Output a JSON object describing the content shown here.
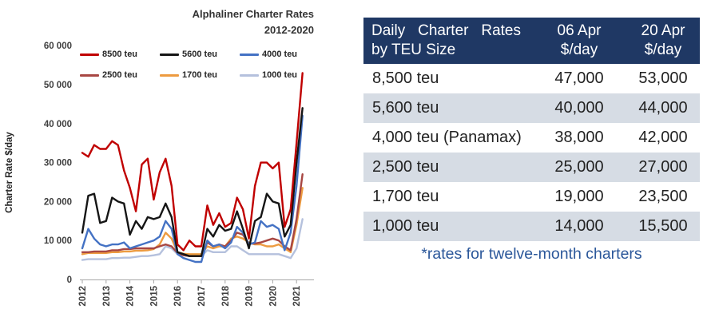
{
  "chart": {
    "title_line1": "Alphaliner Charter Rates",
    "title_line2": "2012-2020",
    "y_axis_title": "Charter Rate $/day",
    "y_ticks": [
      "60 000",
      "50 000",
      "40 000",
      "30 000",
      "20 000",
      "10 000",
      "0"
    ],
    "x_ticks": [
      "2012",
      "2013",
      "2014",
      "2015",
      "2016",
      "2017",
      "2018",
      "2019",
      "2020",
      "2021"
    ],
    "axis_color": "#A6A6A6",
    "tick_label_color": "#3F3F3F"
  },
  "chart_data": {
    "type": "line",
    "title": "Alphaliner Charter Rates 2012-2020",
    "xlabel": "",
    "ylabel": "Charter Rate $/day",
    "ylim": [
      0,
      60000
    ],
    "xlim": [
      2011.9,
      2021.4
    ],
    "grid": false,
    "legend_position": "top",
    "x": [
      2012.0,
      2012.25,
      2012.5,
      2012.75,
      2013.0,
      2013.25,
      2013.5,
      2013.75,
      2014.0,
      2014.25,
      2014.5,
      2014.75,
      2015.0,
      2015.25,
      2015.5,
      2015.75,
      2016.0,
      2016.25,
      2016.5,
      2016.75,
      2017.0,
      2017.25,
      2017.5,
      2017.75,
      2018.0,
      2018.25,
      2018.5,
      2018.75,
      2019.0,
      2019.25,
      2019.5,
      2019.75,
      2020.0,
      2020.25,
      2020.5,
      2020.75,
      2021.0,
      2021.25
    ],
    "series": [
      {
        "name": "8500 teu",
        "color": "#C00000",
        "values": [
          32500,
          31500,
          34500,
          33500,
          33500,
          35500,
          34500,
          28000,
          23500,
          17500,
          29500,
          31000,
          20500,
          27500,
          31000,
          24000,
          9000,
          7500,
          10000,
          8500,
          8500,
          19000,
          14000,
          17000,
          13500,
          14500,
          21000,
          18000,
          10500,
          24000,
          30000,
          30000,
          28500,
          30000,
          13500,
          18000,
          35000,
          53000
        ]
      },
      {
        "name": "5600 teu",
        "color": "#151515",
        "values": [
          12000,
          21500,
          22000,
          14500,
          15000,
          21000,
          20000,
          19500,
          11500,
          15000,
          13000,
          16000,
          15500,
          16000,
          19500,
          16000,
          7000,
          6500,
          6000,
          6000,
          6000,
          13000,
          11000,
          14000,
          12500,
          13000,
          17500,
          13000,
          8000,
          15000,
          16000,
          22000,
          20000,
          19500,
          11000,
          14000,
          30000,
          44000
        ]
      },
      {
        "name": "4000 teu",
        "color": "#4472C4",
        "values": [
          8000,
          13000,
          10500,
          9000,
          8500,
          9000,
          9000,
          9500,
          8000,
          8500,
          9000,
          9500,
          10000,
          11000,
          15000,
          13000,
          6500,
          5500,
          5000,
          4500,
          4500,
          10000,
          8500,
          9000,
          8000,
          9500,
          13500,
          12000,
          9000,
          9500,
          15000,
          13500,
          14000,
          13000,
          7500,
          12000,
          24000,
          42000
        ]
      },
      {
        "name": "2500 teu",
        "color": "#A84743",
        "values": [
          7000,
          7000,
          7200,
          7200,
          7200,
          7500,
          7500,
          7800,
          7800,
          8000,
          8000,
          8000,
          8000,
          8500,
          9000,
          8500,
          6800,
          6200,
          6000,
          6000,
          6000,
          9500,
          8500,
          9000,
          8500,
          10000,
          12000,
          11500,
          9200,
          9200,
          9500,
          10000,
          10500,
          10000,
          8500,
          7500,
          15500,
          27000
        ]
      },
      {
        "name": "1700 teu",
        "color": "#ED9B40",
        "values": [
          6500,
          6800,
          6800,
          6800,
          6800,
          7000,
          7000,
          7200,
          7200,
          7400,
          7400,
          7500,
          7800,
          9000,
          12000,
          10500,
          7000,
          6600,
          6500,
          6500,
          6500,
          8500,
          8000,
          8500,
          8500,
          10500,
          11000,
          10500,
          9500,
          9000,
          9000,
          8500,
          8500,
          9000,
          8000,
          7000,
          14000,
          23500
        ]
      },
      {
        "name": "1000 teu",
        "color": "#B5C1DD",
        "values": [
          5000,
          5200,
          5200,
          5200,
          5200,
          5500,
          5500,
          5600,
          5600,
          5800,
          6000,
          6000,
          6200,
          6500,
          8500,
          8000,
          6500,
          6200,
          6000,
          6000,
          6000,
          7500,
          7000,
          7000,
          7000,
          8500,
          8500,
          7500,
          6500,
          6500,
          6500,
          6500,
          6500,
          6500,
          6000,
          5500,
          8000,
          15500
        ]
      }
    ]
  },
  "table": {
    "header": {
      "col1_line1": "Daily Charter Rates",
      "col1_line2": "by TEU Size",
      "col2_line1": "06 Apr",
      "col2_line2": "$/day",
      "col3_line1": "20 Apr",
      "col3_line2": "$/day"
    },
    "rows": [
      {
        "label": "8,500 teu",
        "apr06": "47,000",
        "apr20": "53,000"
      },
      {
        "label": "5,600 teu",
        "apr06": "40,000",
        "apr20": "44,000"
      },
      {
        "label": "4,000 teu (Panamax)",
        "apr06": "38,000",
        "apr20": "42,000"
      },
      {
        "label": "2,500 teu",
        "apr06": "25,000",
        "apr20": "27,000"
      },
      {
        "label": "1,700 teu",
        "apr06": "19,000",
        "apr20": "23,500"
      },
      {
        "label": "1,000 teu",
        "apr06": "14,000",
        "apr20": "15,500"
      }
    ],
    "footnote": "*rates for twelve-month charters",
    "colors": {
      "header_bg": "#1F3864",
      "header_text": "#FFFFFF",
      "stripe_bg": "#D6DCE4",
      "footnote_color": "#2B579A"
    }
  }
}
